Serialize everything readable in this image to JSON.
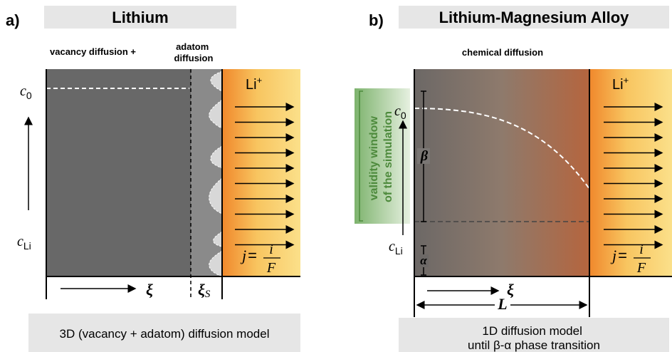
{
  "panel_a": {
    "label": "a)",
    "title": "Lithium",
    "annotation": "vacancy diffusion +",
    "adatom": [
      "adatom",
      "diffusion"
    ],
    "c0": {
      "base": "c",
      "sub": "0"
    },
    "c_li": {
      "base": "c",
      "sub": "Li"
    },
    "ion": {
      "base": "Li",
      "sup": "+"
    },
    "flux": {
      "j": "j",
      "eq": "=",
      "num": "i",
      "den": "F"
    },
    "xi": "ξ",
    "xi_s": {
      "base": "ξ",
      "sub": "S"
    },
    "caption": "3D (vacancy + adatom) diffusion model"
  },
  "panel_b": {
    "label": "b)",
    "title": "Lithium-Magnesium Alloy",
    "annotation": "chemical diffusion",
    "validity": [
      "validity window",
      "of the simulation"
    ],
    "c0": {
      "base": "c",
      "sub": "0"
    },
    "c_li": {
      "base": "c",
      "sub": "Li"
    },
    "ion": {
      "base": "Li",
      "sup": "+"
    },
    "flux": {
      "j": "j",
      "eq": "=",
      "num": "i",
      "den": "F"
    },
    "beta": "β",
    "alpha": "α",
    "xi": "ξ",
    "length": "L",
    "caption": [
      "1D diffusion model",
      "until β-α phase transition"
    ]
  }
}
